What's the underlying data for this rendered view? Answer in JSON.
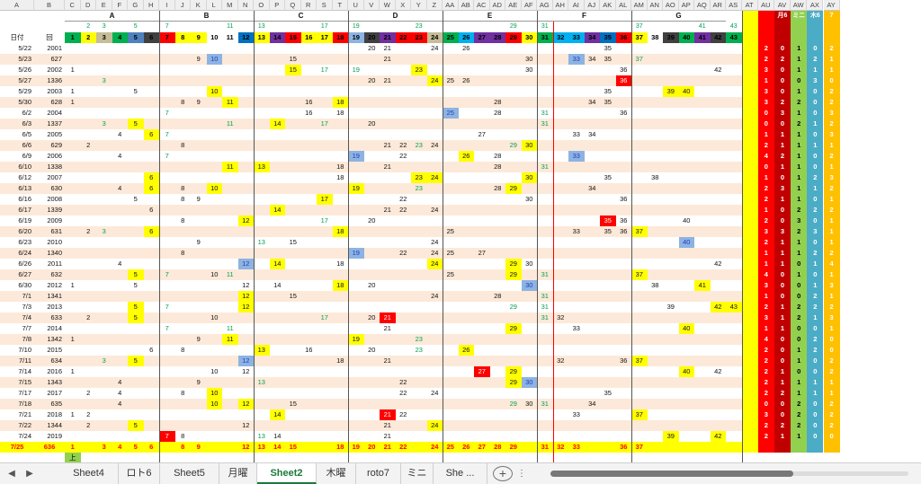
{
  "window": {
    "app": "Excel",
    "active_sheet": "Sheet2"
  },
  "header": {
    "col_letters": [
      "A",
      "B",
      "C",
      "D",
      "E",
      "F",
      "G",
      "H",
      "I",
      "J",
      "K",
      "L",
      "M",
      "N",
      "O",
      "P",
      "Q",
      "R",
      "S",
      "T",
      "U",
      "V",
      "W",
      "X",
      "Y",
      "Z",
      "AA",
      "AB",
      "AC",
      "AD",
      "AE",
      "AF",
      "AG",
      "AH",
      "AI",
      "AJ",
      "AK",
      "AL",
      "AM",
      "AN",
      "AO",
      "AP",
      "AQ",
      "AR",
      "AS",
      "AT",
      "AU",
      "AV",
      "AW",
      "AX",
      "AY"
    ],
    "groups": [
      {
        "label": "A",
        "from": "C",
        "to": "H"
      },
      {
        "label": "B",
        "from": "I",
        "to": "N"
      },
      {
        "label": "C",
        "from": "O",
        "to": "T"
      },
      {
        "label": "D",
        "from": "U",
        "to": "Z"
      },
      {
        "label": "E",
        "from": "AA",
        "to": "AF"
      },
      {
        "label": "F",
        "from": "AG",
        "to": "AL"
      },
      {
        "label": "G",
        "from": "AM",
        "to": "AR"
      }
    ],
    "top_labels": {
      "AV": "月6",
      "AW": "ミニ",
      "AX": "木6",
      "AY": "7"
    }
  },
  "rows": [
    {
      "A": "",
      "B": "",
      "C": "",
      "D": "2",
      "E": "3",
      "F": "",
      "G": "5",
      "H": "",
      "I": "7",
      "J": "",
      "K": "",
      "L": "",
      "M": "11",
      "N": "",
      "O": "13",
      "P": "",
      "Q": "",
      "R": "",
      "S": "17",
      "T": "",
      "U": "19",
      "V": "",
      "W": "",
      "X": "",
      "Y": "23",
      "Z": "",
      "AA": "",
      "AB": "",
      "AC": "",
      "AD": "",
      "AE": "29",
      "AF": "",
      "AG": "31",
      "AH": "",
      "AI": "",
      "AJ": "",
      "AK": "",
      "AL": "",
      "AM": "37",
      "AN": "",
      "AO": "",
      "AP": "",
      "AQ": "41",
      "AR": "",
      "AS": "43",
      "AT": "",
      "AU": "",
      "AV": "",
      "AW": "",
      "AX": "",
      "AY": ""
    },
    {
      "A": "日付",
      "B": "回",
      "C": "1",
      "D": "2",
      "E": "3",
      "F": "4",
      "G": "5",
      "H": "6",
      "I": "7",
      "J": "8",
      "K": "9",
      "L": "10",
      "M": "11",
      "N": "12",
      "O": "13",
      "P": "14",
      "Q": "15",
      "R": "16",
      "S": "17",
      "T": "18",
      "U": "19",
      "V": "20",
      "W": "21",
      "X": "22",
      "Y": "23",
      "Z": "24",
      "AA": "25",
      "AB": "26",
      "AC": "27",
      "AD": "28",
      "AE": "29",
      "AF": "30",
      "AG": "31",
      "AH": "32",
      "AI": "33",
      "AJ": "34",
      "AK": "35",
      "AL": "36",
      "AM": "37",
      "AN": "38",
      "AO": "39",
      "AP": "40",
      "AQ": "41",
      "AR": "42",
      "AS": "43",
      "AT": "",
      "AU": "",
      "AV": "",
      "AW": "",
      "AX": "",
      "AY": ""
    },
    {
      "A": "5/22",
      "B": "2001",
      "V": "20",
      "W": "21",
      "Z": "24",
      "AB": "26",
      "AK": "35",
      "AU": "2",
      "AV": "0",
      "AW": "1",
      "AX": "0",
      "AY": "2"
    },
    {
      "A": "5/23",
      "B": "627",
      "K": "9",
      "L": "10",
      "Q": "15",
      "W": "21",
      "AF": "30",
      "AI": "33",
      "AJ": "34",
      "AK": "35",
      "AM": "37",
      "AU": "2",
      "AV": "2",
      "AW": "1",
      "AX": "2",
      "AY": "1"
    },
    {
      "A": "5/26",
      "B": "2002",
      "C": "1",
      "Q": "15",
      "S": "17",
      "U": "19",
      "Y": "23",
      "AF": "30",
      "AL": "36",
      "AR": "42",
      "AU": "3",
      "AV": "0",
      "AW": "1",
      "AX": "1",
      "AY": "1"
    },
    {
      "A": "5/27",
      "B": "1336",
      "E": "3",
      "V": "20",
      "W": "21",
      "Z": "24",
      "AA": "25",
      "AB": "26",
      "AL": "36",
      "AU": "1",
      "AV": "0",
      "AW": "0",
      "AX": "3",
      "AY": "0"
    },
    {
      "A": "5/29",
      "B": "2003",
      "C": "1",
      "G": "5",
      "L": "10",
      "AK": "35",
      "AO": "39",
      "AP": "40",
      "AU": "3",
      "AV": "0",
      "AW": "1",
      "AX": "0",
      "AY": "2"
    },
    {
      "A": "5/30",
      "B": "628",
      "C": "1",
      "J": "8",
      "K": "9",
      "M": "11",
      "R": "16",
      "T": "18",
      "AD": "28",
      "AJ": "34",
      "AK": "35",
      "AU": "3",
      "AV": "2",
      "AW": "2",
      "AX": "0",
      "AY": "2"
    },
    {
      "A": "6/2",
      "B": "2004",
      "I": "7",
      "R": "16",
      "T": "18",
      "AA": "25",
      "AD": "28",
      "AG": "31",
      "AL": "36",
      "AU": "0",
      "AV": "3",
      "AW": "1",
      "AX": "0",
      "AY": "3"
    },
    {
      "A": "6/3",
      "B": "1337",
      "E": "3",
      "G": "5",
      "M": "11",
      "P": "14",
      "S": "17",
      "V": "20",
      "AG": "31",
      "AU": "0",
      "AV": "0",
      "AW": "2",
      "AX": "1",
      "AY": "2"
    },
    {
      "A": "6/5",
      "B": "2005",
      "F": "4",
      "H": "6",
      "I": "7",
      "AC": "27",
      "AI": "33",
      "AJ": "34",
      "AU": "1",
      "AV": "1",
      "AW": "1",
      "AX": "0",
      "AY": "3"
    },
    {
      "A": "6/6",
      "B": "629",
      "D": "2",
      "J": "8",
      "W": "21",
      "X": "22",
      "Y": "23",
      "Z": "24",
      "AE": "29",
      "AF": "30",
      "AU": "2",
      "AV": "1",
      "AW": "1",
      "AX": "1",
      "AY": "1"
    },
    {
      "A": "6/9",
      "B": "2006",
      "F": "4",
      "I": "7",
      "U": "19",
      "X": "22",
      "AB": "26",
      "AD": "28",
      "AI": "33",
      "AU": "4",
      "AV": "2",
      "AW": "1",
      "AX": "0",
      "AY": "2"
    },
    {
      "A": "6/10",
      "B": "1338",
      "M": "11",
      "O": "13",
      "T": "18",
      "W": "21",
      "AD": "28",
      "AG": "31",
      "AU": "0",
      "AV": "1",
      "AW": "1",
      "AX": "0",
      "AY": "1"
    },
    {
      "A": "6/12",
      "B": "2007",
      "H": "6",
      "T": "18",
      "Y": "23",
      "Z": "24",
      "AF": "30",
      "AK": "35",
      "AN": "38",
      "AU": "1",
      "AV": "0",
      "AW": "1",
      "AX": "2",
      "AY": "3"
    },
    {
      "A": "6/13",
      "B": "630",
      "F": "4",
      "H": "6",
      "J": "8",
      "L": "10",
      "U": "19",
      "Y": "23",
      "AD": "28",
      "AE": "29",
      "AJ": "34",
      "AU": "2",
      "AV": "3",
      "AW": "1",
      "AX": "1",
      "AY": "2"
    },
    {
      "A": "6/16",
      "B": "2008",
      "G": "5",
      "J": "8",
      "K": "9",
      "S": "17",
      "X": "22",
      "AF": "30",
      "AL": "36",
      "AU": "2",
      "AV": "1",
      "AW": "1",
      "AX": "0",
      "AY": "1"
    },
    {
      "A": "6/17",
      "B": "1339",
      "H": "6",
      "P": "14",
      "W": "21",
      "X": "22",
      "Z": "24",
      "AU": "1",
      "AV": "0",
      "AW": "2",
      "AX": "2",
      "AY": "2"
    },
    {
      "A": "6/19",
      "B": "2009",
      "J": "8",
      "N": "12",
      "S": "17",
      "V": "20",
      "AK": "35",
      "AL": "36",
      "AP": "40",
      "AU": "2",
      "AV": "0",
      "AW": "3",
      "AX": "0",
      "AY": "1"
    },
    {
      "A": "6/20",
      "B": "631",
      "D": "2",
      "E": "3",
      "H": "6",
      "T": "18",
      "AA": "25",
      "AI": "33",
      "AK": "35",
      "AL": "36",
      "AM": "37",
      "AU": "3",
      "AV": "3",
      "AW": "2",
      "AX": "3",
      "AY": "1"
    },
    {
      "A": "6/23",
      "B": "2010",
      "K": "9",
      "O": "13",
      "Q": "15",
      "Z": "24",
      "AP": "40",
      "AU": "2",
      "AV": "1",
      "AW": "1",
      "AX": "0",
      "AY": "1"
    },
    {
      "A": "6/24",
      "B": "1340",
      "J": "8",
      "U": "19",
      "X": "22",
      "Z": "24",
      "AA": "25",
      "AC": "27",
      "AU": "1",
      "AV": "1",
      "AW": "1",
      "AX": "2",
      "AY": "2"
    },
    {
      "A": "6/26",
      "B": "2011",
      "F": "4",
      "N": "12",
      "P": "14",
      "T": "18",
      "Z": "24",
      "AE": "29",
      "AF": "30",
      "AR": "42",
      "AU": "1",
      "AV": "1",
      "AW": "0",
      "AX": "1",
      "AY": "4"
    },
    {
      "A": "6/27",
      "B": "632",
      "G": "5",
      "I": "7",
      "L": "10",
      "M": "11",
      "AA": "25",
      "AE": "29",
      "AG": "31",
      "AM": "37",
      "AU": "4",
      "AV": "0",
      "AW": "1",
      "AX": "0",
      "AY": "1"
    },
    {
      "A": "6/30",
      "B": "2012",
      "C": "1",
      "G": "5",
      "N": "12",
      "P": "14",
      "T": "18",
      "V": "20",
      "AF": "30",
      "AN": "38",
      "AQ": "41",
      "AU": "3",
      "AV": "0",
      "AW": "0",
      "AX": "1",
      "AY": "3"
    },
    {
      "A": "7/1",
      "B": "1341",
      "N": "12",
      "Q": "15",
      "Z": "24",
      "AD": "28",
      "AG": "31",
      "AU": "1",
      "AV": "0",
      "AW": "0",
      "AX": "2",
      "AY": "1"
    },
    {
      "A": "7/3",
      "B": "2013",
      "G": "5",
      "I": "7",
      "N": "12",
      "AE": "29",
      "AG": "31",
      "AO": "39",
      "AR": "42",
      "AS": "43",
      "AU": "2",
      "AV": "1",
      "AW": "2",
      "AX": "2",
      "AY": "2"
    },
    {
      "A": "7/4",
      "B": "633",
      "D": "2",
      "G": "5",
      "L": "10",
      "S": "17",
      "V": "20",
      "W": "21",
      "AG": "31",
      "AH": "32",
      "AU": "3",
      "AV": "1",
      "AW": "2",
      "AX": "1",
      "AY": "3"
    },
    {
      "A": "7/7",
      "B": "2014",
      "I": "7",
      "M": "11",
      "W": "21",
      "AE": "29",
      "AI": "33",
      "AP": "40",
      "AU": "1",
      "AV": "1",
      "AW": "0",
      "AX": "0",
      "AY": "1"
    },
    {
      "A": "7/8",
      "B": "1342",
      "C": "1",
      "K": "9",
      "M": "11",
      "U": "19",
      "Y": "23",
      "AU": "4",
      "AV": "0",
      "AW": "0",
      "AX": "2",
      "AY": "0"
    },
    {
      "A": "7/10",
      "B": "2015",
      "H": "6",
      "J": "8",
      "O": "13",
      "R": "16",
      "V": "20",
      "Y": "23",
      "AB": "26",
      "AU": "2",
      "AV": "0",
      "AW": "1",
      "AX": "2",
      "AY": "0"
    },
    {
      "A": "7/11",
      "B": "634",
      "E": "3",
      "G": "5",
      "N": "12",
      "T": "18",
      "W": "21",
      "AH": "32",
      "AL": "36",
      "AM": "37",
      "AU": "2",
      "AV": "0",
      "AW": "1",
      "AX": "0",
      "AY": "2"
    },
    {
      "A": "7/14",
      "B": "2016",
      "C": "1",
      "L": "10",
      "N": "12",
      "AC": "27",
      "AE": "29",
      "AP": "40",
      "AR": "42",
      "AU": "2",
      "AV": "1",
      "AW": "0",
      "AX": "0",
      "AY": "2"
    },
    {
      "A": "7/15",
      "B": "1343",
      "F": "4",
      "K": "9",
      "O": "13",
      "X": "22",
      "AE": "29",
      "AF": "30",
      "AU": "2",
      "AV": "1",
      "AW": "1",
      "AX": "1",
      "AY": "1"
    },
    {
      "A": "7/17",
      "B": "2017",
      "D": "2",
      "F": "4",
      "J": "8",
      "L": "10",
      "X": "22",
      "Z": "24",
      "AK": "35",
      "AU": "2",
      "AV": "2",
      "AW": "1",
      "AX": "1",
      "AY": "1"
    },
    {
      "A": "7/18",
      "B": "635",
      "F": "4",
      "L": "10",
      "N": "12",
      "Q": "15",
      "AE": "29",
      "AF": "30",
      "AG": "31",
      "AJ": "34",
      "AU": "0",
      "AV": "0",
      "AW": "2",
      "AX": "0",
      "AY": "2"
    },
    {
      "A": "7/21",
      "B": "2018",
      "C": "1",
      "D": "2",
      "P": "14",
      "W": "21",
      "X": "22",
      "AI": "33",
      "AM": "37",
      "AU": "3",
      "AV": "0",
      "AW": "2",
      "AX": "0",
      "AY": "2"
    },
    {
      "A": "7/22",
      "B": "1344",
      "D": "2",
      "G": "5",
      "N": "12",
      "W": "21",
      "Z": "24",
      "AU": "2",
      "AV": "2",
      "AW": "2",
      "AX": "0",
      "AY": "2"
    },
    {
      "A": "7/24",
      "B": "2019",
      "I": "7",
      "J": "8",
      "O": "13",
      "P": "14",
      "W": "21",
      "AO": "39",
      "AR": "42",
      "AU": "2",
      "AV": "1",
      "AW": "1",
      "AX": "0",
      "AY": "0"
    },
    {
      "A": "7/25",
      "B": "636",
      "C": "1",
      "E": "3",
      "F": "4",
      "G": "5",
      "H": "6",
      "J": "8",
      "K": "9",
      "N": "12",
      "O": "13",
      "P": "14",
      "Q": "15",
      "T": "18",
      "U": "19",
      "V": "20",
      "W": "21",
      "X": "22",
      "Z": "24",
      "AA": "25",
      "AB": "26",
      "AC": "27",
      "AD": "28",
      "AE": "29",
      "AG": "31",
      "AH": "32",
      "AI": "33",
      "AL": "36",
      "AM": "37"
    },
    {
      "C": "上"
    }
  ],
  "sheet_tabs": [
    "Sheet4",
    "ロト6",
    "Sheet5",
    "月曜",
    "Sheet2",
    "木曜",
    "roto7",
    "ミニ",
    "She ..."
  ],
  "tab_nav": {
    "prev": "◀",
    "next": "▶",
    "add": "+",
    "more": "⋮"
  },
  "colors": {
    "header_row": {
      "C": "#00b050",
      "D": "#ffff00",
      "E": "#c4bd97",
      "F": "#00b050",
      "G": "#4f81bd",
      "H": "#404040",
      "I": "#ff0000",
      "J": "#ffff00",
      "K": "#ffff00",
      "L": "#ffffff",
      "M": "#ffffff",
      "N": "#0070c0",
      "O": "#ffff00",
      "P": "#7030a0",
      "Q": "#ff0000",
      "R": "#ffff00",
      "S": "#ffff00",
      "T": "#ff0000",
      "U": "#8db3e2",
      "V": "#404040",
      "W": "#7030a0",
      "X": "#ff0000",
      "Y": "#ff0000",
      "Z": "#c4bd97",
      "AA": "#00b050",
      "AB": "#00b0f0",
      "AC": "#7030a0",
      "AD": "#7030a0",
      "AE": "#ff0000",
      "AF": "#ffff00",
      "AG": "#00b050",
      "AH": "#00b0f0",
      "AI": "#00b0f0",
      "AJ": "#7030a0",
      "AK": "#0070c0",
      "AL": "#ff0000",
      "AM": "#ffff00",
      "AN": "#ffffff",
      "AO": "#404040",
      "AP": "#00b050",
      "AQ": "#7030a0",
      "AR": "#404040",
      "AS": "#00b050"
    },
    "summary_cols": {
      "AT": "#ffff00",
      "AU": "#ff0000",
      "AV": "#c00000",
      "AW": "#92d050",
      "AX": "#4bacc6",
      "AY": "#ffc000"
    },
    "highlight_yellow": "#ffff00",
    "highlight_red": "#ff0000",
    "highlight_blue": "#8db3e2",
    "stripe": "#fde9d9",
    "total_row": "#ffff00",
    "green_text": "#00a050",
    "blue_text": "#1f3fbf",
    "red_text": "#ff0000"
  }
}
